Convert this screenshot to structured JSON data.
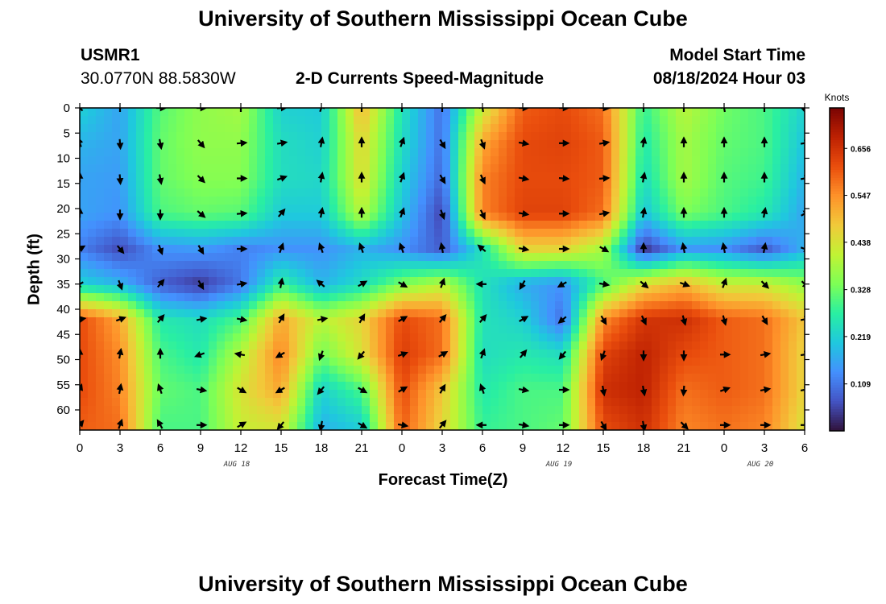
{
  "header": {
    "title": "University of Southern Mississippi Ocean Cube",
    "station_id": "USMR1",
    "station_coords": "30.0770N  88.5830W",
    "product": "2-D Currents Speed-Magnitude",
    "model_start_label": "Model Start Time",
    "model_start_value": "08/18/2024 Hour 03"
  },
  "footer": {
    "title": "University of Southern Mississippi Ocean Cube"
  },
  "chart_data": {
    "type": "heatmap",
    "title": "2-D Currents Speed-Magnitude",
    "xlabel": "Forecast Time(Z)",
    "ylabel": "Depth (ft)",
    "x_tick_labels": [
      "0",
      "3",
      "6",
      "9",
      "12",
      "15",
      "18",
      "21",
      "0",
      "3",
      "6",
      "9",
      "12",
      "15",
      "18",
      "21",
      "0",
      "3",
      "6"
    ],
    "x_date_labels": [
      {
        "label": "AUG 18",
        "at_tick": 4
      },
      {
        "label": "AUG 19",
        "at_tick": 12
      },
      {
        "label": "AUG 20",
        "at_tick": 17
      }
    ],
    "y_ticks": [
      0,
      5,
      10,
      15,
      20,
      25,
      30,
      35,
      40,
      45,
      50,
      55,
      60
    ],
    "ylim": [
      0,
      64
    ],
    "colorbar": {
      "label": "Knots",
      "ticks": [
        "0.109",
        "0.219",
        "0.328",
        "0.438",
        "0.547",
        "0.656"
      ],
      "tick_values": [
        0.109,
        0.219,
        0.328,
        0.438,
        0.547,
        0.656
      ],
      "range": [
        0.0,
        0.75
      ]
    },
    "depths": [
      0,
      7,
      14,
      21,
      28,
      35,
      42,
      49,
      56,
      63
    ],
    "times": [
      0,
      3,
      6,
      9,
      12,
      15,
      18,
      21,
      24,
      27,
      30,
      33,
      36,
      39,
      42,
      45,
      48,
      51,
      54
    ],
    "speed": [
      [
        0.22,
        0.16,
        0.31,
        0.36,
        0.38,
        0.22,
        0.21,
        0.5,
        0.25,
        0.1,
        0.42,
        0.6,
        0.62,
        0.58,
        0.28,
        0.4,
        0.33,
        0.3,
        0.22
      ],
      [
        0.18,
        0.16,
        0.32,
        0.36,
        0.36,
        0.24,
        0.22,
        0.46,
        0.24,
        0.1,
        0.52,
        0.62,
        0.63,
        0.6,
        0.26,
        0.38,
        0.32,
        0.3,
        0.2
      ],
      [
        0.16,
        0.15,
        0.32,
        0.35,
        0.35,
        0.24,
        0.23,
        0.45,
        0.22,
        0.09,
        0.56,
        0.62,
        0.62,
        0.6,
        0.24,
        0.38,
        0.31,
        0.29,
        0.18
      ],
      [
        0.16,
        0.14,
        0.3,
        0.32,
        0.31,
        0.21,
        0.21,
        0.4,
        0.2,
        0.05,
        0.56,
        0.63,
        0.63,
        0.58,
        0.2,
        0.34,
        0.3,
        0.26,
        0.16
      ],
      [
        0.12,
        0.06,
        0.14,
        0.15,
        0.12,
        0.14,
        0.14,
        0.18,
        0.14,
        0.08,
        0.25,
        0.46,
        0.46,
        0.38,
        0.04,
        0.15,
        0.14,
        0.08,
        0.18
      ],
      [
        0.22,
        0.18,
        0.08,
        0.04,
        0.11,
        0.28,
        0.18,
        0.24,
        0.34,
        0.4,
        0.25,
        0.17,
        0.14,
        0.3,
        0.45,
        0.5,
        0.42,
        0.42,
        0.36
      ],
      [
        0.62,
        0.52,
        0.26,
        0.24,
        0.3,
        0.52,
        0.4,
        0.46,
        0.62,
        0.58,
        0.25,
        0.22,
        0.1,
        0.55,
        0.65,
        0.66,
        0.6,
        0.58,
        0.48
      ],
      [
        0.62,
        0.55,
        0.3,
        0.26,
        0.4,
        0.56,
        0.33,
        0.44,
        0.64,
        0.58,
        0.24,
        0.26,
        0.24,
        0.63,
        0.68,
        0.62,
        0.6,
        0.58,
        0.46
      ],
      [
        0.62,
        0.56,
        0.32,
        0.3,
        0.44,
        0.52,
        0.22,
        0.3,
        0.62,
        0.48,
        0.26,
        0.3,
        0.3,
        0.66,
        0.68,
        0.58,
        0.6,
        0.58,
        0.46
      ],
      [
        0.6,
        0.58,
        0.3,
        0.3,
        0.42,
        0.44,
        0.18,
        0.22,
        0.6,
        0.46,
        0.28,
        0.3,
        0.32,
        0.62,
        0.66,
        0.56,
        0.58,
        0.56,
        0.44
      ]
    ],
    "direction_deg": [
      [
        225,
        180,
        90,
        90,
        180,
        95,
        160,
        180,
        180,
        180,
        190,
        90,
        90,
        85,
        180,
        180,
        190,
        180,
        15
      ],
      [
        200,
        5,
        10,
        40,
        95,
        100,
        170,
        180,
        160,
        30,
        20,
        80,
        90,
        100,
        170,
        180,
        180,
        180,
        100
      ],
      [
        180,
        5,
        10,
        45,
        90,
        110,
        170,
        180,
        160,
        30,
        25,
        80,
        85,
        95,
        170,
        180,
        180,
        180,
        100
      ],
      [
        180,
        0,
        0,
        50,
        95,
        140,
        170,
        180,
        160,
        20,
        25,
        80,
        90,
        100,
        170,
        180,
        180,
        170,
        120
      ],
      [
        120,
        40,
        20,
        30,
        90,
        160,
        200,
        200,
        200,
        190,
        230,
        80,
        90,
        60,
        180,
        190,
        190,
        170,
        70
      ],
      [
        300,
        20,
        140,
        30,
        100,
        170,
        230,
        120,
        60,
        160,
        270,
        330,
        300,
        80,
        50,
        70,
        160,
        45,
        45
      ],
      [
        100,
        110,
        140,
        100,
        80,
        150,
        100,
        150,
        120,
        140,
        140,
        120,
        310,
        30,
        25,
        15,
        15,
        30,
        100
      ],
      [
        180,
        170,
        180,
        290,
        260,
        300,
        340,
        320,
        110,
        120,
        160,
        140,
        320,
        340,
        0,
        0,
        90,
        100,
        100
      ],
      [
        160,
        170,
        200,
        80,
        60,
        300,
        320,
        60,
        120,
        150,
        200,
        80,
        90,
        10,
        10,
        355,
        110,
        100,
        100
      ],
      [
        140,
        160,
        210,
        90,
        120,
        320,
        350,
        60,
        80,
        140,
        270,
        80,
        90,
        30,
        10,
        45,
        90,
        90,
        90
      ]
    ]
  },
  "colors": {
    "background": "#ffffff",
    "arrow": "#000000",
    "scale": [
      "#30123b",
      "#4454c4",
      "#4490fe",
      "#1fc8de",
      "#29efa2",
      "#7dff56",
      "#c1f334",
      "#f1ca3a",
      "#fe922a",
      "#ea4e0d",
      "#be2102",
      "#7a0403"
    ]
  }
}
